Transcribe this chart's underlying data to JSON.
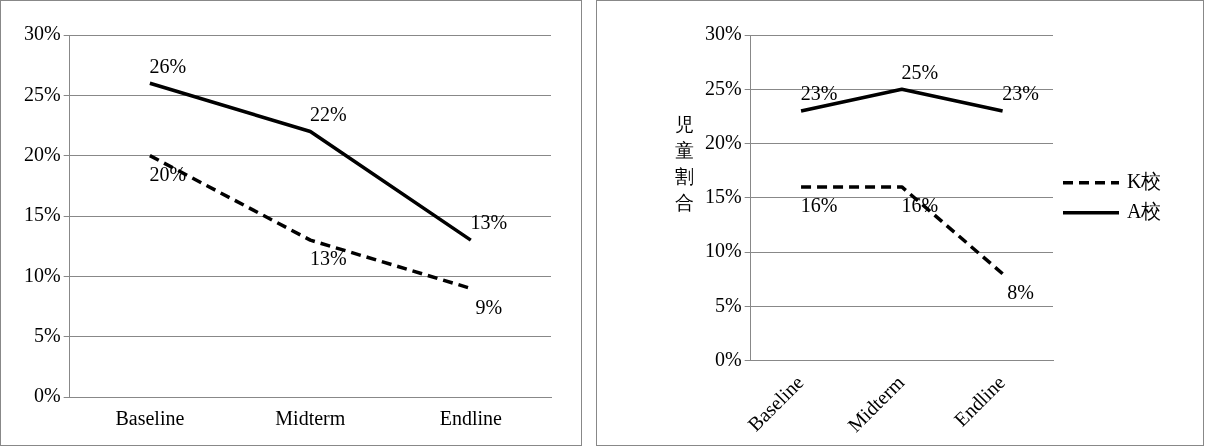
{
  "chart_data": [
    {
      "type": "line",
      "categories": [
        "Baseline",
        "Midterm",
        "Endline"
      ],
      "ylim": [
        0,
        0.3
      ],
      "yticks": [
        {
          "value": 0,
          "label": "0%"
        },
        {
          "value": 0.05,
          "label": "5%"
        },
        {
          "value": 0.1,
          "label": "10%"
        },
        {
          "value": 0.15,
          "label": "15%"
        },
        {
          "value": 0.2,
          "label": "20%"
        },
        {
          "value": 0.25,
          "label": "25%"
        },
        {
          "value": 0.3,
          "label": "30%"
        }
      ],
      "grid": "y",
      "legend": false,
      "data_labels": true,
      "marker": "none",
      "series": [
        {
          "color": "#000000",
          "line_style": "dashed",
          "values": [
            0.2,
            0.13,
            0.09
          ],
          "value_labels": [
            "20%",
            "13%",
            "9%"
          ]
        },
        {
          "color": "#000000",
          "line_style": "solid",
          "values": [
            0.26,
            0.22,
            0.13
          ],
          "value_labels": [
            "26%",
            "22%",
            "13%"
          ]
        }
      ]
    },
    {
      "type": "line",
      "categories": [
        "Baseline",
        "Midterm",
        "Endline"
      ],
      "ylabel": "児童割合",
      "ylim": [
        0,
        0.3
      ],
      "yticks": [
        {
          "value": 0,
          "label": "0%"
        },
        {
          "value": 0.05,
          "label": "5%"
        },
        {
          "value": 0.1,
          "label": "10%"
        },
        {
          "value": 0.15,
          "label": "15%"
        },
        {
          "value": 0.2,
          "label": "20%"
        },
        {
          "value": 0.25,
          "label": "25%"
        },
        {
          "value": 0.3,
          "label": "30%"
        }
      ],
      "grid": "y",
      "legend": "right",
      "data_labels": true,
      "marker": "none",
      "series": [
        {
          "name": "K校",
          "color": "#000000",
          "line_style": "dashed",
          "values": [
            0.16,
            0.16,
            0.08
          ],
          "value_labels": [
            "16%",
            "16%",
            "8%"
          ]
        },
        {
          "name": "A校",
          "color": "#000000",
          "line_style": "solid",
          "values": [
            0.23,
            0.25,
            0.23
          ],
          "value_labels": [
            "23%",
            "25%",
            "23%"
          ]
        }
      ]
    }
  ]
}
